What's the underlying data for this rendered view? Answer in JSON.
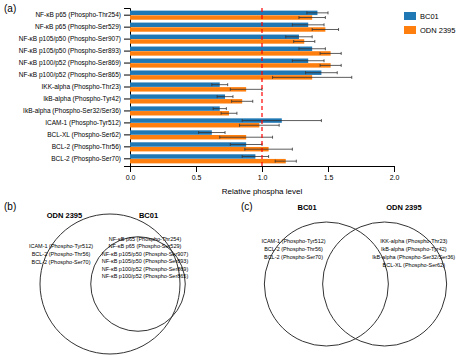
{
  "chart_data": [
    {
      "type": "bar",
      "orientation": "horizontal",
      "title": "(a)",
      "categories": [
        "NF-κB p65 (Phospho-Thr254)",
        "NF-κB p65 (Phospho-Ser529)",
        "NF-κB p105/p50 (Phospho-Ser907)",
        "NF-κB p105/p50 (Phospho-Ser893)",
        "NF-κB p100/p52 (Phospho-Ser869)",
        "NF-κB p100/p52 (Phospho-Ser865)",
        "IKK-alpha (Phospho-Thr23)",
        "IkB-alpha (Phospho-Tyr42)",
        "IkB-alpha (Phospho-Ser32/Ser36)",
        "ICAM-1 (Phospho-Tyr512)",
        "BCL-XL (Phospho-Ser62)",
        "BCL-2 (Phospho-Thr56)",
        "BCL-2 (Phospho-Ser70)"
      ],
      "series": [
        {
          "name": "BC01",
          "values": [
            1.42,
            1.35,
            1.28,
            1.38,
            1.35,
            1.45,
            0.68,
            0.72,
            0.68,
            1.15,
            0.62,
            0.88,
            0.95
          ],
          "errors": [
            0.08,
            0.12,
            0.1,
            0.1,
            0.12,
            0.12,
            0.06,
            0.06,
            0.05,
            0.3,
            0.1,
            0.12,
            0.1
          ]
        },
        {
          "name": "ODN 2395",
          "values": [
            1.38,
            1.48,
            1.32,
            1.52,
            1.52,
            1.38,
            0.88,
            0.85,
            0.75,
            0.98,
            0.88,
            1.05,
            1.18
          ],
          "errors": [
            0.1,
            0.1,
            0.08,
            0.08,
            0.08,
            0.3,
            0.12,
            0.08,
            0.06,
            0.15,
            0.2,
            0.18,
            0.08
          ]
        }
      ],
      "xlabel": "Relative phospha level",
      "xlim": [
        0.0,
        2.0
      ],
      "xticks": [
        {
          "value": 0.0,
          "label": "0.0"
        },
        0.5,
        {
          "value": 1.0,
          "label": "1.0"
        },
        1.5,
        {
          "value": 2.0,
          "label": "2.0"
        }
      ],
      "ref_line": {
        "value": 1.0,
        "color": "red"
      },
      "grid": false,
      "legend": "upper right"
    },
    {
      "type": "euler",
      "title": "(b)",
      "sets": [
        {
          "name": "ODN 2395",
          "items": [
            "ICAM-1 (Phospho-Tyr512)",
            "BCL-2 (Phospho-Thr56)",
            "BCL-2 (Phospho-Ser70)"
          ]
        },
        {
          "name": "BC01",
          "items": [
            "NF-κB p65 (Phospho-Thr254)",
            "NF-κB p65 (Phospho-Ser529)",
            "NF-κB p105/p50 (Phospho-Ser907)",
            "NF-κB p105/p50 (Phospho-Ser893)",
            "NF-κB p100/p52 (Phospho-Ser869)",
            "NF-κB p100/p52 (Phospho-Ser865)"
          ]
        }
      ]
    },
    {
      "type": "venn",
      "title": "(c)",
      "sets": [
        {
          "name": "BC01",
          "items": [
            "ICAM-1 (Phospho-Tyr512)",
            "BCL-2 (Phospho-Thr56)",
            "BCL-2 (Phospho-Ser70)"
          ]
        },
        {
          "name": "ODN 2395",
          "items": [
            "IKK-alpha (Phospho-Thr23)",
            "IkB-alpha (Phospho-Tyr42)",
            "IkB-alpha (Phospho-Ser32/Ser36)",
            "BCL-XL (Phospho-Ser62)"
          ]
        }
      ]
    }
  ]
}
